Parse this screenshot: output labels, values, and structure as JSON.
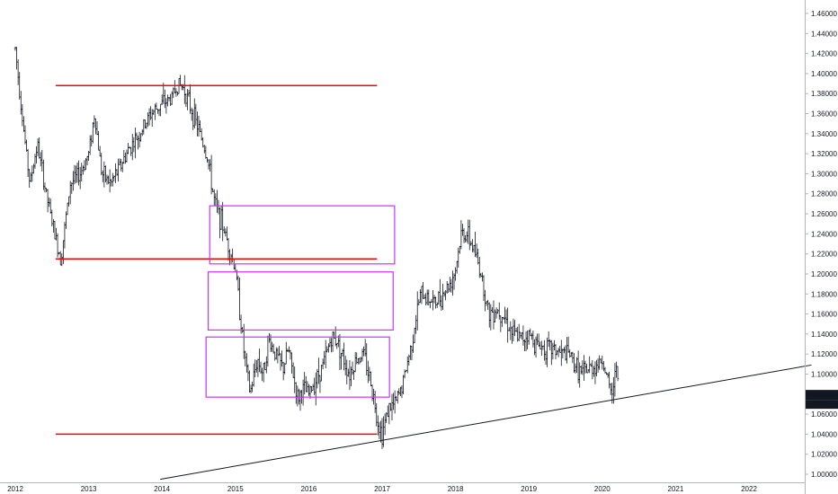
{
  "chart_data": {
    "type": "ohlc",
    "title": "",
    "xlabel": "",
    "ylabel": "",
    "ylim": [
      0.995,
      1.47
    ],
    "xlim": [
      2012.0,
      2022.9
    ],
    "grid": false,
    "legend": "none",
    "y_ticks": [
      "1.46000",
      "1.44000",
      "1.42000",
      "1.40000",
      "1.38000",
      "1.36000",
      "1.34000",
      "1.32000",
      "1.30000",
      "1.28000",
      "1.26000",
      "1.24000",
      "1.22000",
      "1.20000",
      "1.18000",
      "1.16000",
      "1.14000",
      "1.12000",
      "1.10000",
      "1.08000",
      "1.06000",
      "1.04000",
      "1.02000",
      "1.00000"
    ],
    "x_ticks": [
      {
        "label": "2012",
        "x": 2012.0
      },
      {
        "label": "2013",
        "x": 2013.0
      },
      {
        "label": "2014",
        "x": 2014.0
      },
      {
        "label": "2015",
        "x": 2015.0
      },
      {
        "label": "2016",
        "x": 2016.0
      },
      {
        "label": "2017",
        "x": 2017.0
      },
      {
        "label": "2018",
        "x": 2018.0
      },
      {
        "label": "2019",
        "x": 2019.0
      },
      {
        "label": "2020",
        "x": 2020.0
      },
      {
        "label": "2021",
        "x": 2021.0
      },
      {
        "label": "2022",
        "x": 2022.0
      }
    ],
    "price_path": [
      [
        2012.0,
        1.425
      ],
      [
        2012.12,
        1.34
      ],
      [
        2012.2,
        1.29
      ],
      [
        2012.3,
        1.33
      ],
      [
        2012.42,
        1.28
      ],
      [
        2012.55,
        1.235
      ],
      [
        2012.62,
        1.215
      ],
      [
        2012.75,
        1.29
      ],
      [
        2012.88,
        1.3
      ],
      [
        2013.0,
        1.32
      ],
      [
        2013.08,
        1.36
      ],
      [
        2013.18,
        1.3
      ],
      [
        2013.3,
        1.29
      ],
      [
        2013.45,
        1.31
      ],
      [
        2013.55,
        1.325
      ],
      [
        2013.7,
        1.34
      ],
      [
        2013.85,
        1.36
      ],
      [
        2014.0,
        1.37
      ],
      [
        2014.12,
        1.375
      ],
      [
        2014.22,
        1.39
      ],
      [
        2014.3,
        1.385
      ],
      [
        2014.42,
        1.36
      ],
      [
        2014.52,
        1.34
      ],
      [
        2014.62,
        1.315
      ],
      [
        2014.72,
        1.27
      ],
      [
        2014.82,
        1.25
      ],
      [
        2014.92,
        1.225
      ],
      [
        2015.0,
        1.205
      ],
      [
        2015.05,
        1.17
      ],
      [
        2015.12,
        1.12
      ],
      [
        2015.2,
        1.08
      ],
      [
        2015.3,
        1.115
      ],
      [
        2015.38,
        1.1
      ],
      [
        2015.45,
        1.135
      ],
      [
        2015.55,
        1.12
      ],
      [
        2015.65,
        1.105
      ],
      [
        2015.72,
        1.125
      ],
      [
        2015.85,
        1.075
      ],
      [
        2015.92,
        1.085
      ],
      [
        2016.0,
        1.08
      ],
      [
        2016.1,
        1.095
      ],
      [
        2016.2,
        1.11
      ],
      [
        2016.3,
        1.135
      ],
      [
        2016.38,
        1.135
      ],
      [
        2016.45,
        1.12
      ],
      [
        2016.55,
        1.1
      ],
      [
        2016.65,
        1.115
      ],
      [
        2016.75,
        1.12
      ],
      [
        2016.85,
        1.09
      ],
      [
        2016.95,
        1.05
      ],
      [
        2017.0,
        1.04
      ],
      [
        2017.08,
        1.065
      ],
      [
        2017.18,
        1.07
      ],
      [
        2017.28,
        1.09
      ],
      [
        2017.4,
        1.13
      ],
      [
        2017.52,
        1.18
      ],
      [
        2017.65,
        1.175
      ],
      [
        2017.72,
        1.17
      ],
      [
        2017.82,
        1.18
      ],
      [
        2017.92,
        1.19
      ],
      [
        2018.0,
        1.205
      ],
      [
        2018.08,
        1.24
      ],
      [
        2018.15,
        1.24
      ],
      [
        2018.25,
        1.225
      ],
      [
        2018.35,
        1.2
      ],
      [
        2018.45,
        1.16
      ],
      [
        2018.55,
        1.165
      ],
      [
        2018.65,
        1.16
      ],
      [
        2018.78,
        1.14
      ],
      [
        2018.9,
        1.135
      ],
      [
        2019.0,
        1.14
      ],
      [
        2019.1,
        1.13
      ],
      [
        2019.25,
        1.125
      ],
      [
        2019.35,
        1.125
      ],
      [
        2019.45,
        1.12
      ],
      [
        2019.55,
        1.12
      ],
      [
        2019.62,
        1.11
      ],
      [
        2019.72,
        1.1
      ],
      [
        2019.82,
        1.105
      ],
      [
        2019.95,
        1.11
      ],
      [
        2020.0,
        1.115
      ],
      [
        2020.05,
        1.1
      ],
      [
        2020.1,
        1.085
      ],
      [
        2020.16,
        1.08
      ],
      [
        2020.18,
        1.12
      ],
      [
        2020.2,
        1.115
      ],
      [
        2020.22,
        1.075
      ]
    ],
    "annotations": {
      "horizontal_lines": [
        {
          "y": 1.388,
          "x0": 2012.55,
          "x1": 2016.93,
          "color": "#ff0000"
        },
        {
          "y": 1.215,
          "x0": 2012.55,
          "x1": 2016.93,
          "color": "#ff0000"
        },
        {
          "y": 1.04,
          "x0": 2012.55,
          "x1": 2016.93,
          "color": "#ff0000"
        }
      ],
      "boxes": [
        {
          "x0": 2014.65,
          "x1": 2017.17,
          "y0": 1.21,
          "y1": 1.268,
          "color": "#cc33ff"
        },
        {
          "x0": 2014.63,
          "x1": 2017.15,
          "y0": 1.144,
          "y1": 1.202,
          "color": "#cc33ff"
        },
        {
          "x0": 2014.6,
          "x1": 2017.1,
          "y0": 1.077,
          "y1": 1.137,
          "color": "#cc33ff"
        }
      ],
      "trendline": {
        "x0": 2014.0,
        "y0": 0.995,
        "x1": 2022.85,
        "y1": 1.109,
        "color": "#131722"
      }
    },
    "last_price": "1.07923",
    "last_price_value": 1.07923,
    "countdown": "3d 8h",
    "colors": {
      "bars": "#131722",
      "background": "#ffffff",
      "axis_text": "#131722",
      "price_label_bg": "#131722",
      "price_label_text": "#ffffff"
    }
  }
}
